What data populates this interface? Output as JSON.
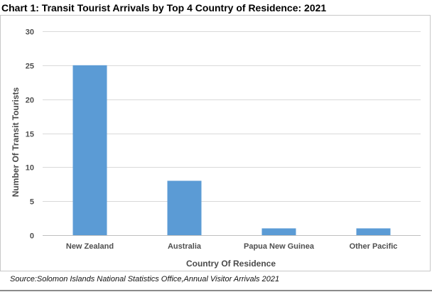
{
  "chart_data": {
    "type": "bar",
    "title": "Chart 1: Transit Tourist Arrivals by Top 4 Country of Residence: 2021",
    "xlabel": "Country Of Residence",
    "ylabel": "Number Of Transit Tourists",
    "categories": [
      "New Zealand",
      "Australia",
      "Papua New Guinea",
      "Other Pacific"
    ],
    "values": [
      25,
      8,
      1,
      1
    ],
    "ylim": [
      0,
      30
    ],
    "yticks": [
      0,
      5,
      10,
      15,
      20,
      25,
      30
    ],
    "grid": true,
    "legend": "none",
    "bar_color": "#5b9bd5",
    "source": "Source:Solomon Islands National Statistics Office,Annual Visitor Arrivals 2021"
  },
  "colors": {
    "grid": "#d9d9d9",
    "axis": "#bfbfbf",
    "text": "#4f4f4f"
  }
}
